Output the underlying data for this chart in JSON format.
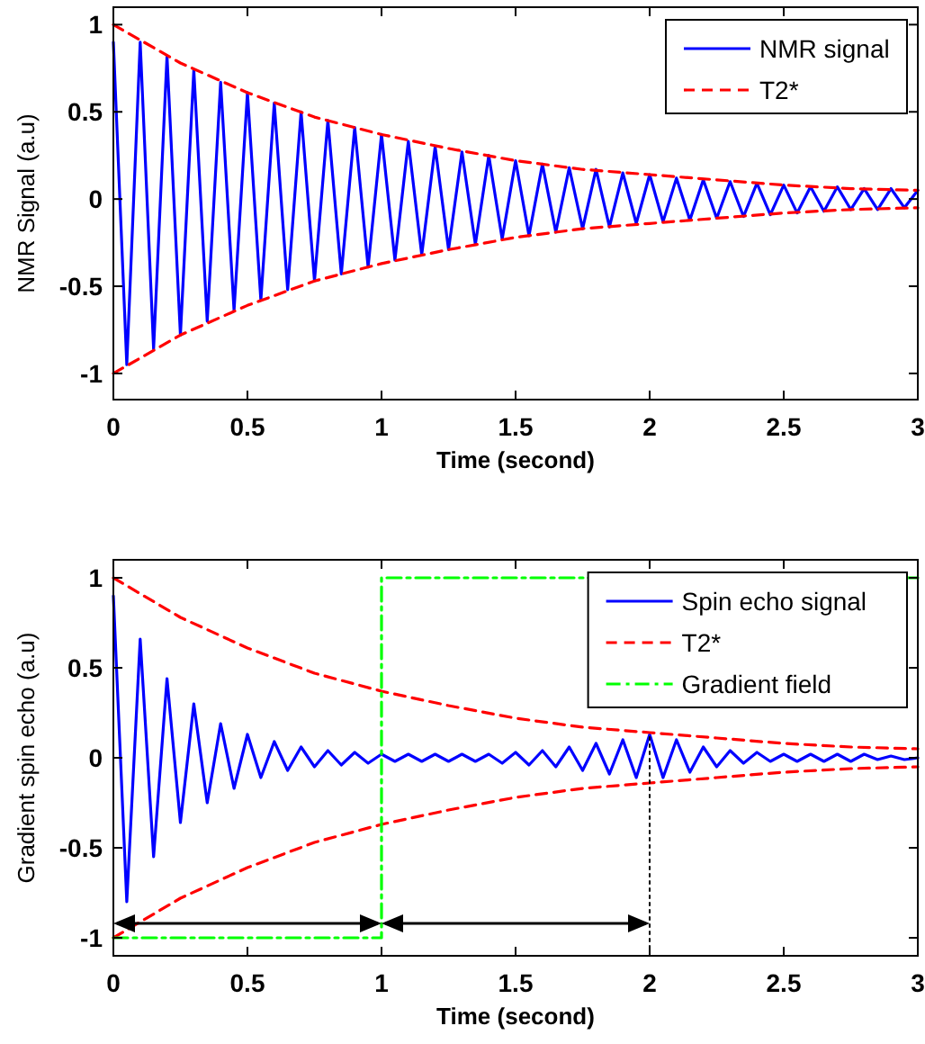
{
  "chart_data": [
    {
      "type": "line",
      "xlabel": "Time (second)",
      "ylabel": "NMR Signal (a.u)",
      "xlim": [
        0,
        3
      ],
      "ylim": [
        -1.15,
        1.1
      ],
      "xticks": [
        0,
        0.5,
        1,
        1.5,
        2,
        2.5,
        3
      ],
      "yticks": [
        -1,
        -0.5,
        0,
        0.5,
        1
      ],
      "legend": "top right",
      "series": [
        {
          "name": "NMR signal",
          "color": "#0000ff",
          "line_style": "solid",
          "x": [
            0,
            0.05,
            0.1,
            0.15,
            0.2,
            0.25,
            0.3,
            0.35,
            0.4,
            0.45,
            0.5,
            0.55,
            0.6,
            0.65,
            0.7,
            0.75,
            0.8,
            0.85,
            0.9,
            0.95,
            1,
            1.05,
            1.1,
            1.15,
            1.2,
            1.25,
            1.3,
            1.35,
            1.4,
            1.45,
            1.5,
            1.55,
            1.6,
            1.65,
            1.7,
            1.75,
            1.8,
            1.85,
            1.9,
            1.95,
            2,
            2.05,
            2.1,
            2.15,
            2.2,
            2.25,
            2.3,
            2.35,
            2.4,
            2.45,
            2.5,
            2.55,
            2.6,
            2.65,
            2.7,
            2.75,
            2.8,
            2.85,
            2.9,
            2.95,
            3
          ],
          "values": [
            0.9,
            -0.95,
            0.9,
            -0.86,
            0.82,
            -0.78,
            0.74,
            -0.7,
            0.67,
            -0.64,
            0.61,
            -0.58,
            0.55,
            -0.52,
            0.5,
            -0.47,
            0.45,
            -0.43,
            0.41,
            -0.39,
            0.37,
            -0.35,
            0.33,
            -0.32,
            0.3,
            -0.29,
            0.27,
            -0.26,
            0.25,
            -0.23,
            0.22,
            -0.21,
            0.2,
            -0.19,
            0.18,
            -0.17,
            0.17,
            -0.16,
            0.15,
            -0.14,
            0.14,
            -0.13,
            0.12,
            -0.12,
            0.11,
            -0.11,
            0.1,
            -0.1,
            0.09,
            -0.09,
            0.08,
            -0.08,
            0.07,
            -0.07,
            0.07,
            -0.06,
            0.06,
            -0.06,
            0.06,
            -0.05,
            0.05
          ]
        },
        {
          "name": "T2*",
          "color": "#ff0000",
          "line_style": "dashed",
          "x": [
            0,
            0.25,
            0.5,
            0.75,
            1,
            1.25,
            1.5,
            1.75,
            2,
            2.25,
            2.5,
            2.75,
            3
          ],
          "values": [
            1,
            0.78,
            0.61,
            0.47,
            0.37,
            0.29,
            0.22,
            0.17,
            0.14,
            0.11,
            0.08,
            0.06,
            0.05
          ]
        },
        {
          "color": "#ff0000",
          "line_style": "dashed",
          "x": [
            0,
            0.25,
            0.5,
            0.75,
            1,
            1.25,
            1.5,
            1.75,
            2,
            2.25,
            2.5,
            2.75,
            3
          ],
          "values": [
            -1,
            -0.78,
            -0.61,
            -0.47,
            -0.37,
            -0.29,
            -0.22,
            -0.17,
            -0.14,
            -0.11,
            -0.08,
            -0.06,
            -0.05
          ]
        }
      ]
    },
    {
      "type": "line",
      "xlabel": "Time (second)",
      "ylabel": "Gradient spin echo (a.u)",
      "xlim": [
        0,
        3
      ],
      "ylim": [
        -1.1,
        1.1
      ],
      "xticks": [
        0,
        0.5,
        1,
        1.5,
        2,
        2.5,
        3
      ],
      "yticks": [
        -1,
        -0.5,
        0,
        0.5,
        1
      ],
      "legend": "top right",
      "series": [
        {
          "name": "Spin echo signal",
          "color": "#0000ff",
          "line_style": "solid",
          "x": [
            0,
            0.05,
            0.1,
            0.15,
            0.2,
            0.25,
            0.3,
            0.35,
            0.4,
            0.45,
            0.5,
            0.55,
            0.6,
            0.65,
            0.7,
            0.75,
            0.8,
            0.85,
            0.9,
            0.95,
            1,
            1.05,
            1.1,
            1.15,
            1.2,
            1.25,
            1.3,
            1.35,
            1.4,
            1.45,
            1.5,
            1.55,
            1.6,
            1.65,
            1.7,
            1.75,
            1.8,
            1.85,
            1.9,
            1.95,
            2,
            2.05,
            2.1,
            2.15,
            2.2,
            2.25,
            2.3,
            2.35,
            2.4,
            2.45,
            2.5,
            2.55,
            2.6,
            2.65,
            2.7,
            2.75,
            2.8,
            2.85,
            2.9,
            2.95,
            3
          ],
          "values": [
            0.9,
            -0.8,
            0.66,
            -0.55,
            0.44,
            -0.36,
            0.3,
            -0.25,
            0.19,
            -0.17,
            0.13,
            -0.11,
            0.09,
            -0.07,
            0.06,
            -0.05,
            0.04,
            -0.04,
            0.03,
            -0.03,
            0.02,
            -0.02,
            0.02,
            -0.02,
            0.02,
            -0.02,
            0.02,
            -0.02,
            0.02,
            -0.03,
            0.03,
            -0.04,
            0.04,
            -0.05,
            0.06,
            -0.07,
            0.08,
            -0.09,
            0.1,
            -0.11,
            0.13,
            -0.11,
            0.1,
            -0.08,
            0.06,
            -0.05,
            0.04,
            -0.03,
            0.03,
            -0.02,
            0.02,
            -0.02,
            0.02,
            -0.02,
            0.02,
            -0.02,
            0.02,
            -0.01,
            0.01,
            -0.01,
            0
          ]
        },
        {
          "name": "T2*",
          "color": "#ff0000",
          "line_style": "dashed",
          "x": [
            0,
            0.25,
            0.5,
            0.75,
            1,
            1.25,
            1.5,
            1.75,
            2,
            2.25,
            2.5,
            2.75,
            3
          ],
          "values": [
            1,
            0.78,
            0.61,
            0.47,
            0.37,
            0.29,
            0.22,
            0.17,
            0.14,
            0.11,
            0.08,
            0.06,
            0.05
          ]
        },
        {
          "color": "#ff0000",
          "line_style": "dashed",
          "x": [
            0,
            0.25,
            0.5,
            0.75,
            1,
            1.25,
            1.5,
            1.75,
            2,
            2.25,
            2.5,
            2.75,
            3
          ],
          "values": [
            -1,
            -0.78,
            -0.61,
            -0.47,
            -0.37,
            -0.29,
            -0.22,
            -0.17,
            -0.14,
            -0.11,
            -0.08,
            -0.06,
            -0.05
          ]
        },
        {
          "name": "Gradient field",
          "color": "#00ff00",
          "line_style": "dashdot",
          "x": [
            0,
            1,
            1,
            3
          ],
          "values": [
            -1,
            -1,
            1,
            1
          ]
        },
        {
          "color": "#000000",
          "line_style": "dotted",
          "x": [
            2,
            2
          ],
          "values": [
            -1.1,
            0.13
          ]
        }
      ]
    }
  ]
}
